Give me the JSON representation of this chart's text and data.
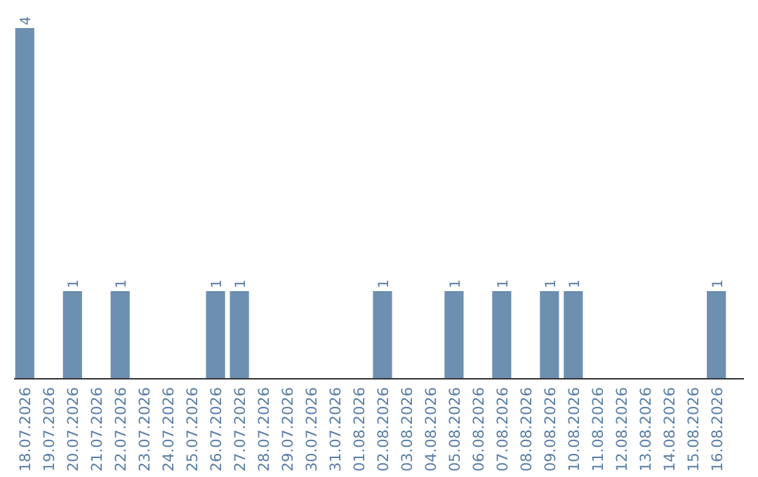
{
  "chart_data": {
    "type": "bar",
    "categories": [
      "18.07.2026",
      "19.07.2026",
      "20.07.2026",
      "21.07.2026",
      "22.07.2026",
      "23.07.2026",
      "24.07.2026",
      "25.07.2026",
      "26.07.2026",
      "27.07.2026",
      "28.07.2026",
      "29.07.2026",
      "30.07.2026",
      "31.07.2026",
      "01.08.2026",
      "02.08.2026",
      "03.08.2026",
      "04.08.2026",
      "05.08.2026",
      "06.08.2026",
      "07.08.2026",
      "08.08.2026",
      "09.08.2026",
      "10.08.2026",
      "11.08.2026",
      "12.08.2026",
      "13.08.2026",
      "14.08.2026",
      "15.08.2026",
      "16.08.2026"
    ],
    "values": [
      4,
      0,
      1,
      0,
      1,
      0,
      0,
      0,
      1,
      1,
      0,
      0,
      0,
      0,
      0,
      1,
      0,
      0,
      1,
      0,
      1,
      0,
      1,
      1,
      0,
      0,
      0,
      0,
      0,
      1
    ],
    "value_labels": [
      "4",
      null,
      "1",
      null,
      "1",
      null,
      null,
      null,
      "1",
      "1",
      null,
      null,
      null,
      null,
      null,
      "1",
      null,
      null,
      "1",
      null,
      "1",
      null,
      "1",
      "1",
      null,
      null,
      null,
      null,
      null,
      "1"
    ],
    "color": "#6d8fb0"
  }
}
